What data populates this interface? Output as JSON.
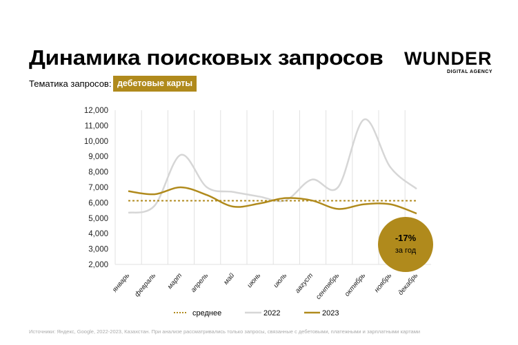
{
  "header": {
    "title": "Динамика поисковых запросов",
    "topic_label": "Тематика запросов:",
    "topic_value": "дебетовые карты",
    "logo": "WUNDER",
    "logo_sub": "DIGITAL AGENCY"
  },
  "colors": {
    "accent": "#b08a1c",
    "series2022": "#d6d6d6",
    "grid": "#e0e0e0"
  },
  "chart_data": {
    "type": "line",
    "categories": [
      "январь",
      "февраль",
      "март",
      "апрель",
      "май",
      "июнь",
      "июль",
      "август",
      "сентябрь",
      "октябрь",
      "ноябрь",
      "декабрь"
    ],
    "yticks": [
      "2,000",
      "3,000",
      "4,000",
      "5,000",
      "6,000",
      "7,000",
      "8,000",
      "9,000",
      "10,000",
      "11,000",
      "12,000"
    ],
    "ylim": [
      2000,
      12000
    ],
    "series": [
      {
        "name": "2022",
        "values": [
          5350,
          5800,
          9100,
          7000,
          6700,
          6400,
          6150,
          7500,
          7000,
          11400,
          8300,
          6900
        ]
      },
      {
        "name": "2023",
        "values": [
          6750,
          6550,
          7000,
          6500,
          5750,
          5950,
          6300,
          6150,
          5600,
          5900,
          5900,
          5300
        ]
      }
    ],
    "average": {
      "name": "среднее",
      "value": 6130
    },
    "annotation": {
      "value": "-17%",
      "text": "за год"
    },
    "grid": "vertical",
    "legend": "bottom"
  },
  "footer": {
    "source": "Источники: Яндекс, Google, 2022-2023, Казахстан. При анализе рассматривались только запросы, связанные с дебетовыми, платежными и зарплатными картами"
  }
}
